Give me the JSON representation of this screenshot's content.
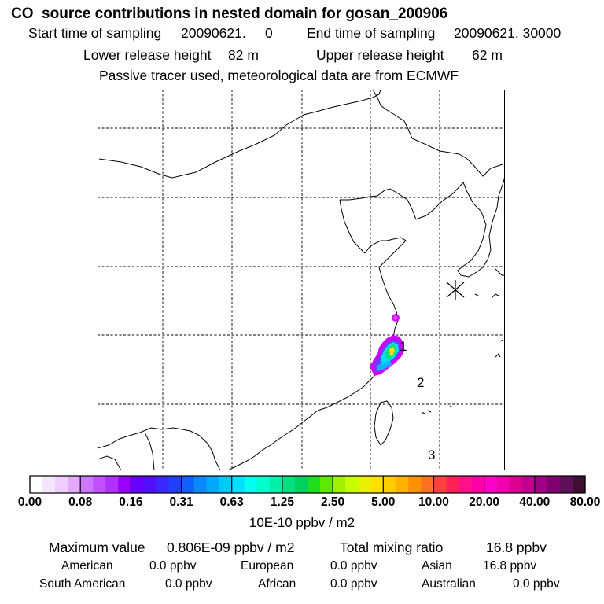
{
  "header": {
    "title": "CO  source contributions in nested domain for gosan_200906",
    "start_label": "Start time of sampling",
    "start_value": "20090621.     0",
    "end_label": "End time of sampling",
    "end_value": "20090621. 30000",
    "lower_label": "Lower release height",
    "lower_value": "82 m",
    "upper_label": "Upper release height",
    "upper_value": "62 m",
    "note": "Passive tracer used, meteorological data are from ECMWF"
  },
  "map": {
    "region_labels": [
      "1",
      "2",
      "3"
    ],
    "receptor_marker": "station-star-icon",
    "colors": {
      "coast": "#000000",
      "grid": "#000000",
      "plume_outer": "#cc00ff",
      "plume_mid": "#00e0ff",
      "plume_core": "#ffe000"
    }
  },
  "colorbar": {
    "tick_labels": [
      "0.00",
      "0.08",
      "0.16",
      "0.31",
      "0.63",
      "1.25",
      "2.50",
      "5.00",
      "10.00",
      "20.00",
      "40.00",
      "80.00"
    ],
    "colors": [
      "#ffffff",
      "#f5e6ff",
      "#eecdff",
      "#e4a8ff",
      "#cc77ff",
      "#c250ff",
      "#b030ff",
      "#9a00ff",
      "#6a00ff",
      "#5010ff",
      "#3a28ff",
      "#2040ff",
      "#1060ff",
      "#0a88ff",
      "#00a8ff",
      "#00c8ff",
      "#00e0ff",
      "#00ffee",
      "#00ffcc",
      "#00f0a8",
      "#00e080",
      "#00d060",
      "#20dd20",
      "#60e800",
      "#a0f000",
      "#c8ff00",
      "#e8f000",
      "#ffe000",
      "#ffcc00",
      "#ffb000",
      "#ff9000",
      "#ff7020",
      "#ff4040",
      "#ff2058",
      "#ff1088",
      "#ff00a8",
      "#ff00c8",
      "#f000b0",
      "#dd0090",
      "#c00090",
      "#a00088",
      "#800070",
      "#601058",
      "#401030"
    ],
    "unit": "10E-10 ppbv / m2"
  },
  "stats": {
    "max_label": "Maximum value",
    "max_value": "0.806E-09 ppbv / m2",
    "total_label": "Total mixing ratio",
    "total_value": "16.8 ppbv",
    "regions": [
      {
        "name": "American",
        "value": "0.0 ppbv"
      },
      {
        "name": "European",
        "value": "0.0 ppbv"
      },
      {
        "name": "Asian",
        "value": "16.8 ppbv"
      },
      {
        "name": "South American",
        "value": "0.0 ppbv"
      },
      {
        "name": "African",
        "value": "0.0 ppbv"
      },
      {
        "name": "Australian",
        "value": "0.0 ppbv"
      }
    ]
  }
}
